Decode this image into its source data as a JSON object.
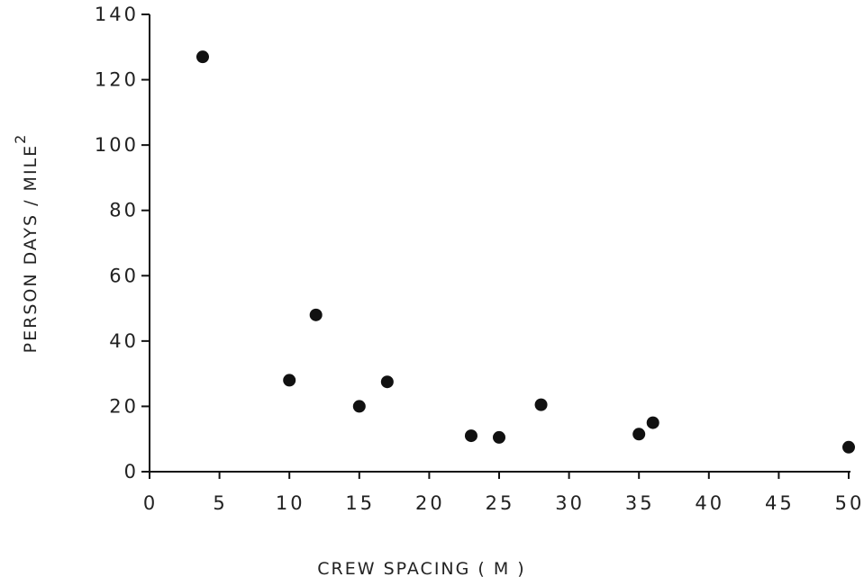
{
  "chart_data": {
    "type": "scatter",
    "xlabel": "CREW   SPACING ( M )",
    "ylabel": "PERSON  DAYS / MILE",
    "ylabel_superscript": "2",
    "xlim": [
      0,
      50
    ],
    "ylim": [
      0,
      140
    ],
    "x_ticks": [
      "0",
      "5",
      "10",
      "15",
      "20",
      "25",
      "30",
      "35",
      "40",
      "45",
      "50"
    ],
    "y_ticks": [
      "0",
      "20",
      "40",
      "60",
      "80",
      "100",
      "120",
      "140"
    ],
    "grid": false,
    "points": [
      {
        "x": 3.8,
        "y": 127
      },
      {
        "x": 10,
        "y": 28
      },
      {
        "x": 11.9,
        "y": 48
      },
      {
        "x": 15,
        "y": 20
      },
      {
        "x": 17,
        "y": 27.5
      },
      {
        "x": 23,
        "y": 11
      },
      {
        "x": 25,
        "y": 10.5
      },
      {
        "x": 28,
        "y": 20.5
      },
      {
        "x": 35,
        "y": 11.5
      },
      {
        "x": 36,
        "y": 15
      },
      {
        "x": 50,
        "y": 7.5
      }
    ],
    "colors": {
      "marker": "#111111",
      "axis": "#111111",
      "text": "#222222"
    }
  }
}
